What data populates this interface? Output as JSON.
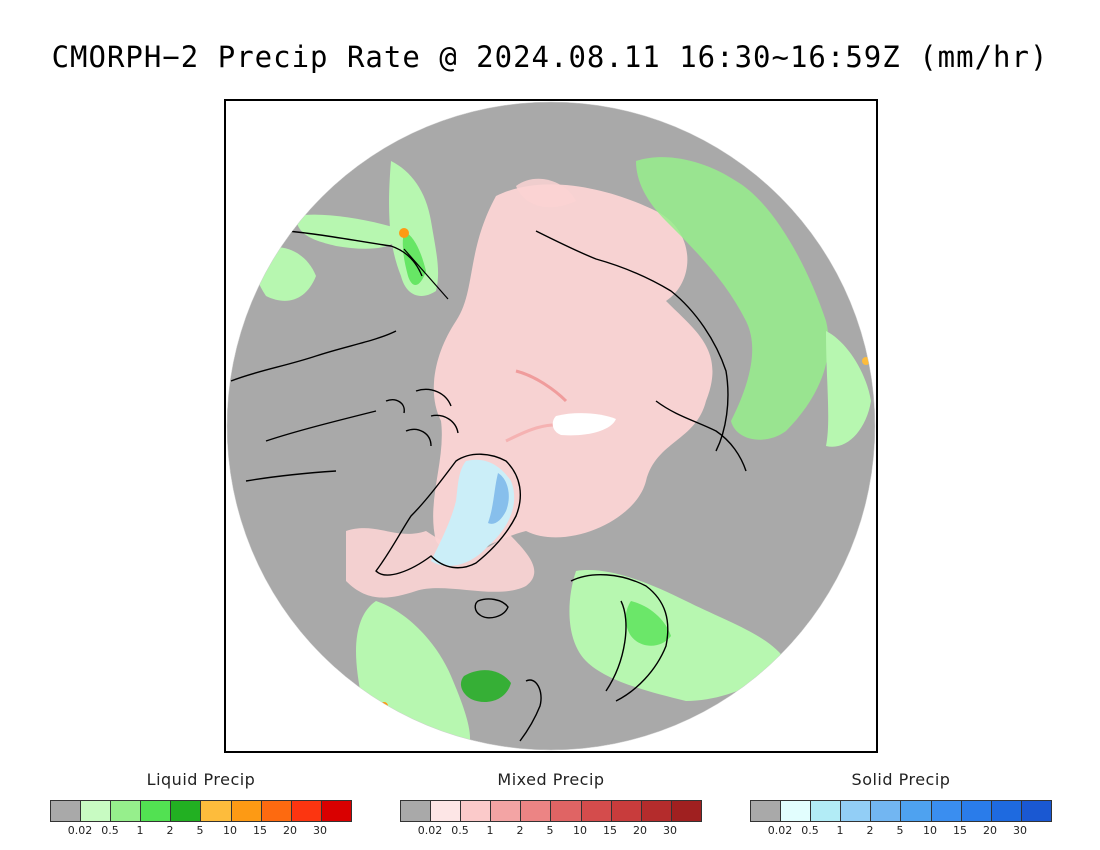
{
  "title": "CMORPH−2 Precip Rate @ 2024.08.11 16:30~16:59Z (mm/hr)",
  "map": {
    "projection": "north-polar-stereographic",
    "background_color": "#a9a9a9",
    "coastline_color": "#000000",
    "empty_area_color": "#ffffff"
  },
  "legends": [
    {
      "id": "liquid",
      "title": "Liquid Precip",
      "colors": [
        "#a9a9a9",
        "#c8fbc2",
        "#96ef8c",
        "#52e152",
        "#22b022",
        "#fdbc3c",
        "#fd9a14",
        "#fd6a10",
        "#fc3510",
        "#d90000"
      ],
      "ticks": [
        "0.02",
        "0.5",
        "1",
        "2",
        "5",
        "10",
        "15",
        "20",
        "30"
      ]
    },
    {
      "id": "mixed",
      "title": "Mixed Precip",
      "colors": [
        "#a9a9a9",
        "#fde6e6",
        "#fbcaca",
        "#f3a4a4",
        "#ec8484",
        "#e06464",
        "#d44c4c",
        "#c83c3c",
        "#b42c2c",
        "#a02020"
      ],
      "ticks": [
        "0.02",
        "0.5",
        "1",
        "2",
        "5",
        "10",
        "15",
        "20",
        "30"
      ]
    },
    {
      "id": "solid",
      "title": "Solid Precip",
      "colors": [
        "#a9a9a9",
        "#e2fefe",
        "#b2ecf6",
        "#92cef6",
        "#72b6f2",
        "#4ea2f0",
        "#3a8ef0",
        "#2a7cea",
        "#1e6ae0",
        "#1a58d2"
      ],
      "ticks": [
        "0.02",
        "0.5",
        "1",
        "2",
        "5",
        "10",
        "15",
        "20",
        "30"
      ]
    }
  ]
}
